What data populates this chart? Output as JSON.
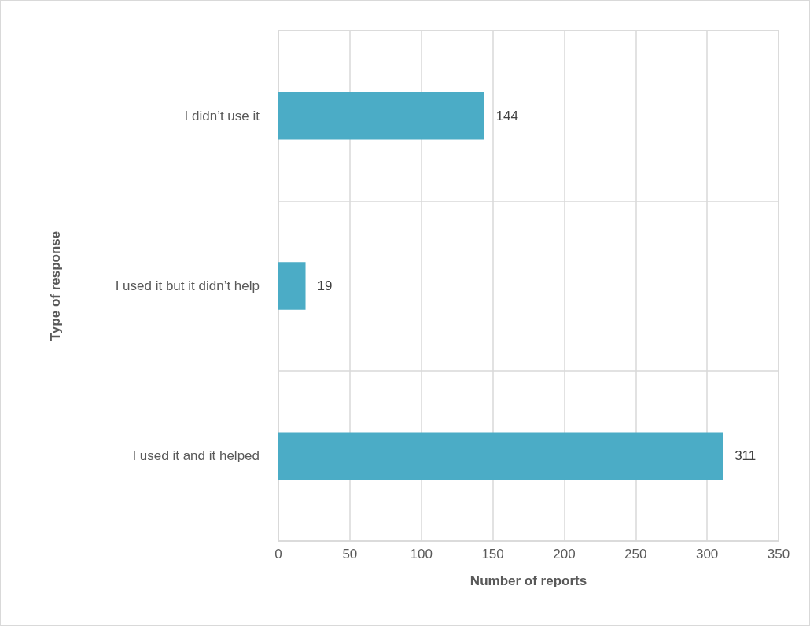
{
  "chart_data": {
    "type": "bar",
    "orientation": "horizontal",
    "categories": [
      "I didn’t use it",
      "I used it but it didn’t help",
      "I used it and it helped"
    ],
    "values": [
      144,
      19,
      311
    ],
    "color": "#4bacc6",
    "xlim": [
      0,
      350
    ],
    "xticks": [
      0,
      50,
      100,
      150,
      200,
      250,
      300,
      350
    ],
    "xlabel": "Number of reports",
    "ylabel": "Type of response",
    "grid": true,
    "data_labels": true
  }
}
